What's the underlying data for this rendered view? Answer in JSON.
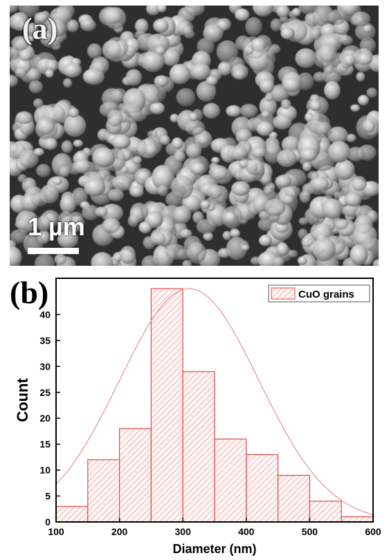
{
  "panel_a": {
    "label": "(a)",
    "scale_bar": "1 µm"
  },
  "panel_b": {
    "label": "(b)"
  },
  "chart_data": {
    "type": "bar",
    "bins": [
      [
        100,
        150
      ],
      [
        150,
        200
      ],
      [
        200,
        250
      ],
      [
        250,
        300
      ],
      [
        300,
        350
      ],
      [
        350,
        400
      ],
      [
        400,
        450
      ],
      [
        450,
        500
      ],
      [
        500,
        550
      ],
      [
        550,
        600
      ]
    ],
    "values": [
      3,
      12,
      18,
      45,
      29,
      16,
      13,
      9,
      4,
      1
    ],
    "series": [
      {
        "name": "CuO grains",
        "values": [
          3,
          12,
          18,
          45,
          29,
          16,
          13,
          9,
          4,
          1
        ]
      }
    ],
    "fit": {
      "type": "gaussian",
      "peak_x": 310,
      "peak_y": 45,
      "sigma": 110
    },
    "xlabel": "Diameter (nm)",
    "ylabel": "Count",
    "xlim": [
      100,
      600
    ],
    "ylim": [
      0,
      47
    ],
    "xticks": [
      100,
      200,
      300,
      400,
      500,
      600
    ],
    "yticks": [
      0,
      5,
      10,
      15,
      20,
      25,
      30,
      35,
      40
    ],
    "legend_position": "top-right",
    "color": "#e0484a"
  }
}
